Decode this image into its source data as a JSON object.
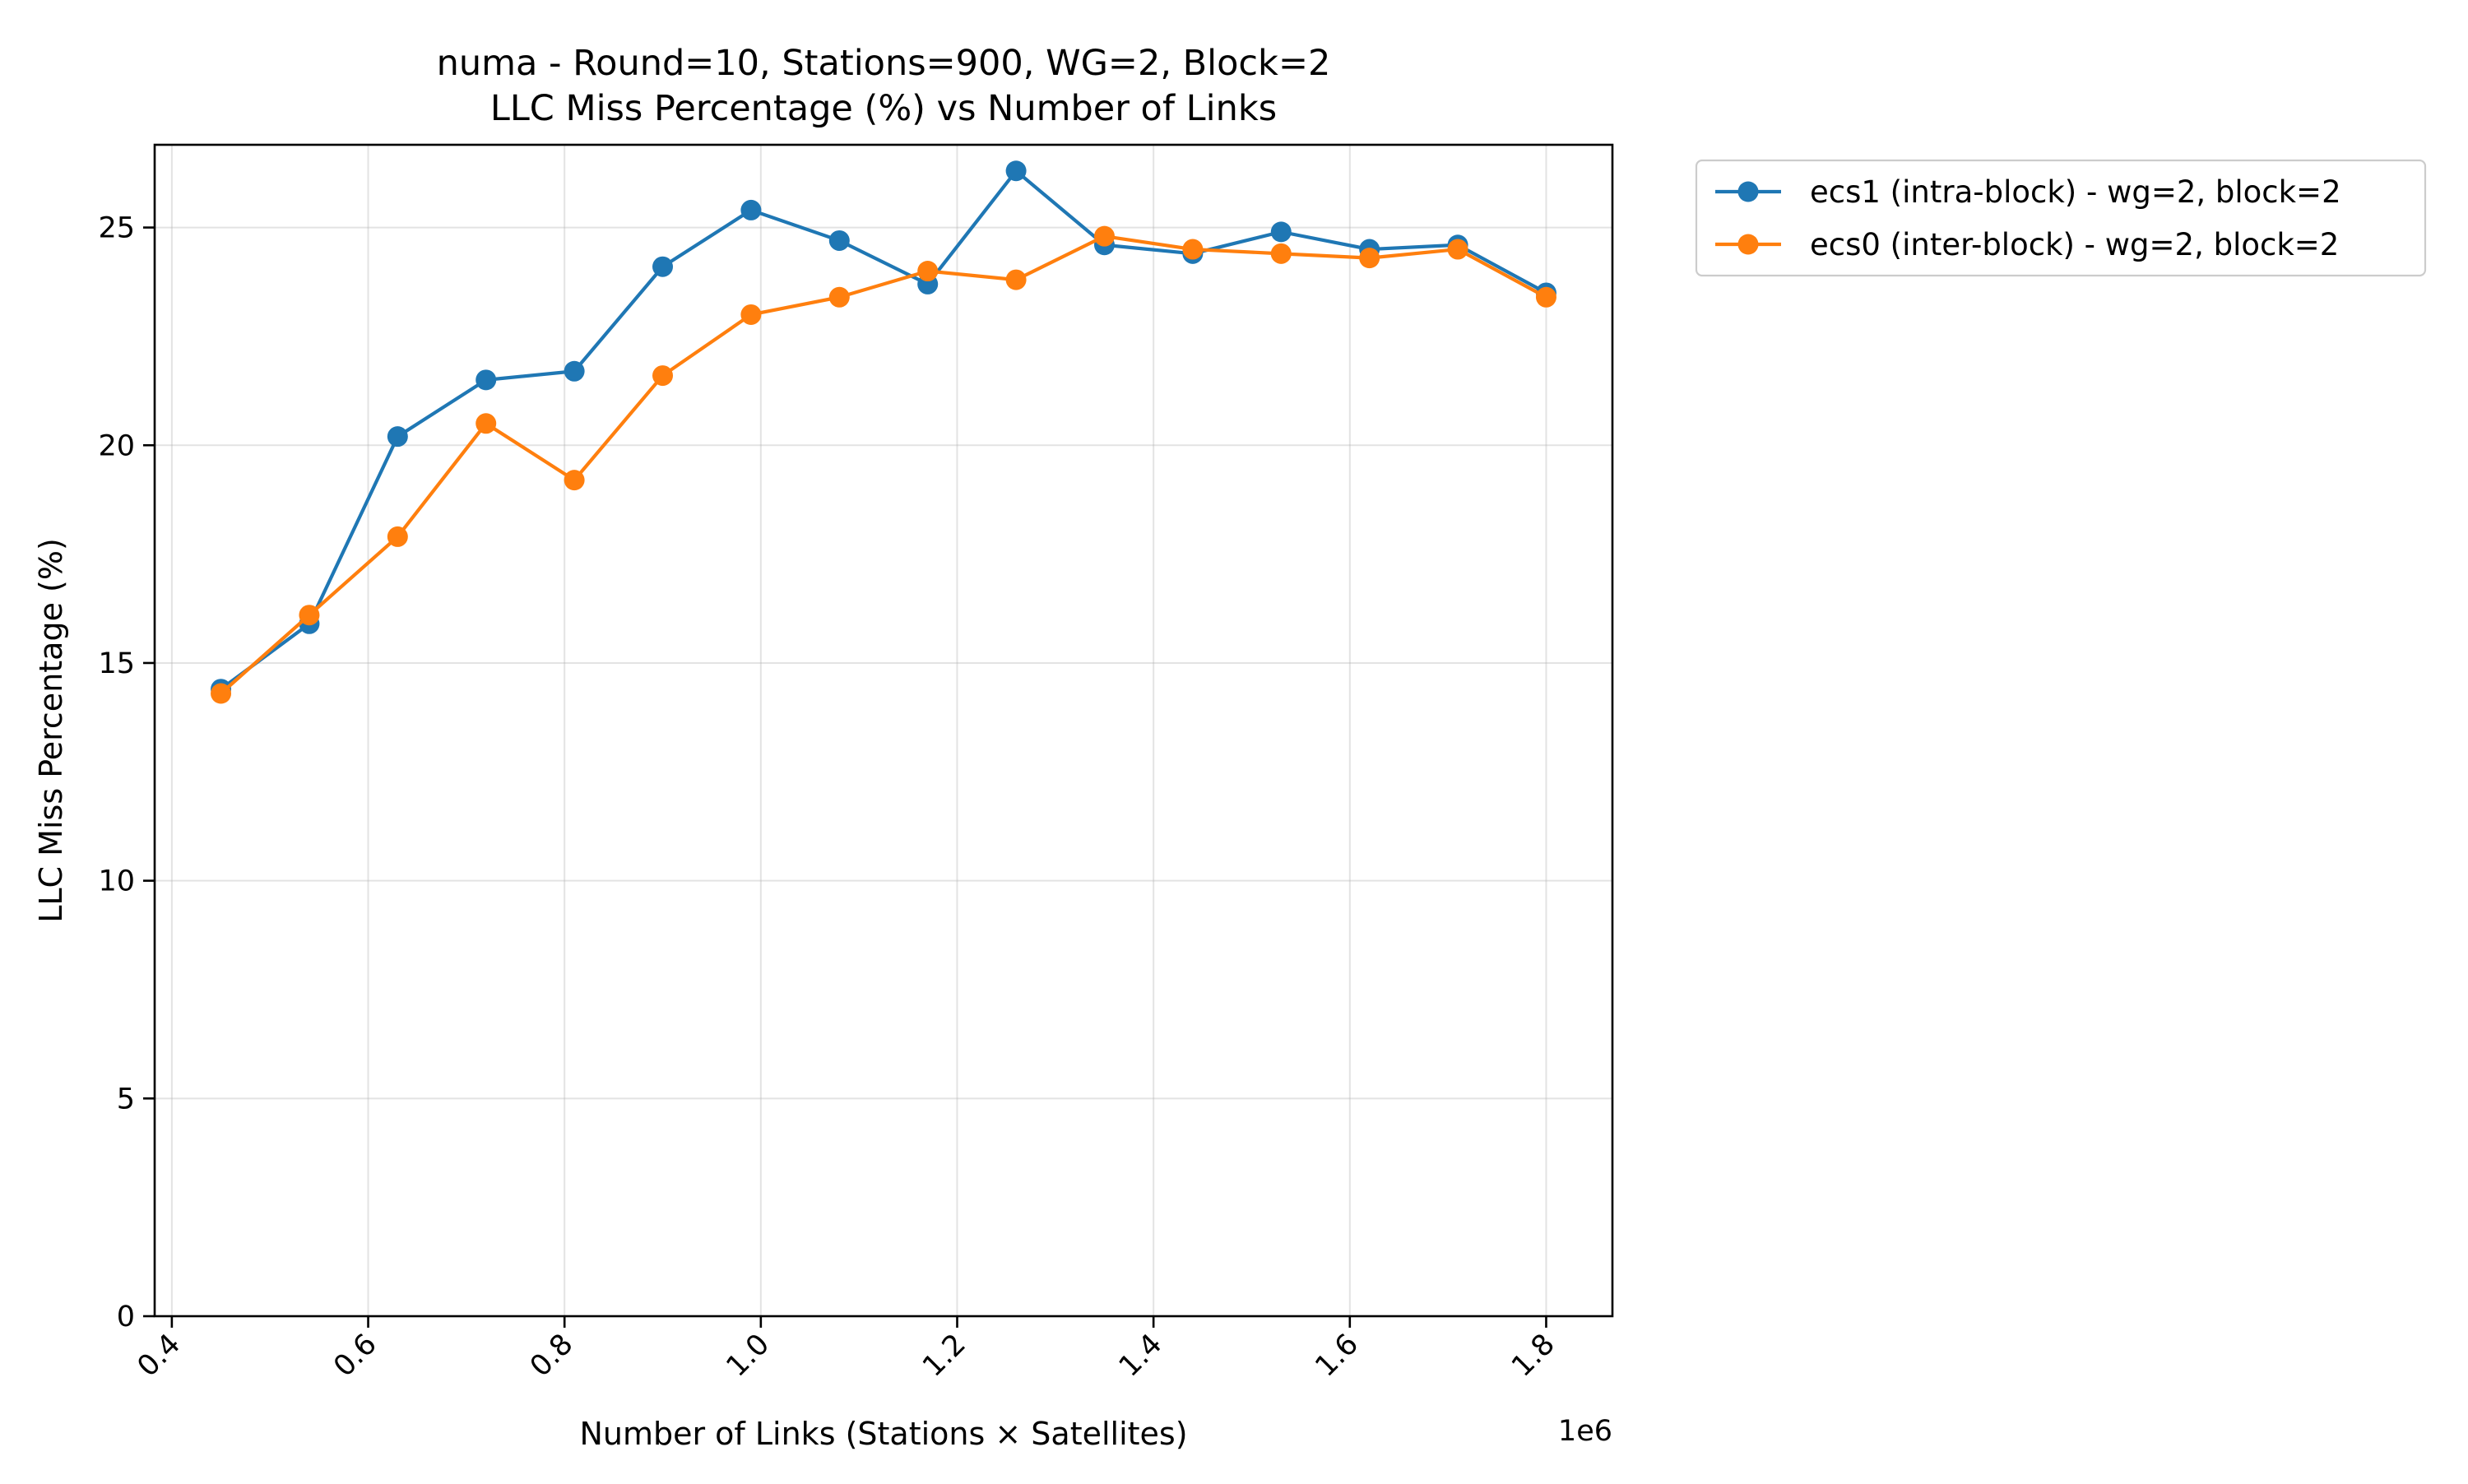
{
  "chart_data": {
    "type": "line",
    "title": "numa - Round=10, Stations=900, WG=2, Block=2",
    "subtitle": "LLC Miss Percentage (%) vs Number of Links",
    "xlabel": "Number of Links (Stations × Satellites)",
    "ylabel": "LLC Miss Percentage (%)",
    "x_offset_label": "1e6",
    "xlim": [
      0.3825,
      1.8675
    ],
    "ylim": [
      0,
      26.9
    ],
    "xticks": [
      0.4,
      0.6,
      0.8,
      1.0,
      1.2,
      1.4,
      1.6,
      1.8
    ],
    "xtick_labels": [
      "0.4",
      "0.6",
      "0.8",
      "1.0",
      "1.2",
      "1.4",
      "1.6",
      "1.8"
    ],
    "yticks": [
      0,
      5,
      10,
      15,
      20,
      25
    ],
    "ytick_labels": [
      "0",
      "5",
      "10",
      "15",
      "20",
      "25"
    ],
    "grid": true,
    "legend_position": "outside-top-right",
    "x": [
      0.45,
      0.54,
      0.63,
      0.72,
      0.81,
      0.9,
      0.99,
      1.08,
      1.17,
      1.26,
      1.35,
      1.44,
      1.53,
      1.62,
      1.71,
      1.8
    ],
    "series": [
      {
        "name": "ecs1 (intra-block) - wg=2, block=2",
        "color": "#1f77b4",
        "values": [
          14.4,
          15.9,
          20.2,
          21.5,
          21.7,
          24.1,
          25.4,
          24.7,
          23.7,
          26.3,
          24.6,
          24.4,
          24.9,
          24.5,
          24.6,
          23.5
        ]
      },
      {
        "name": "ecs0 (inter-block) - wg=2, block=2",
        "color": "#ff7f0e",
        "values": [
          14.3,
          16.1,
          17.9,
          20.5,
          19.2,
          21.6,
          23.0,
          23.4,
          24.0,
          23.8,
          24.8,
          24.5,
          24.4,
          24.3,
          24.5,
          23.4
        ]
      }
    ]
  }
}
